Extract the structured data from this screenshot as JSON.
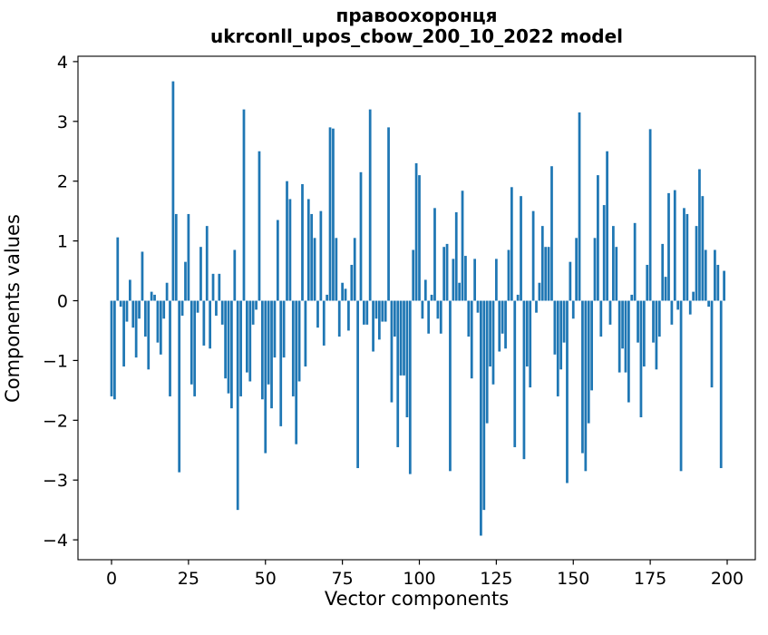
{
  "figure": {
    "title_line1": "правоохоронця",
    "title_line2": "ukrconll_upos_cbow_200_10_2022 model",
    "xlabel": "Vector components",
    "ylabel": "Components values"
  },
  "chart_data": {
    "type": "bar",
    "title": "правоохоронця",
    "subtitle": "ukrconll_upos_cbow_200_10_2022 model",
    "xlabel": "Vector components",
    "ylabel": "Components values",
    "bar_color": "#1f77b4",
    "axis_color": "#000000",
    "background_color": "#ffffff",
    "grid": false,
    "legend": false,
    "x_ticks": [
      0,
      25,
      50,
      75,
      100,
      125,
      150,
      175,
      200
    ],
    "y_ticks_labels": [
      "4",
      "3",
      "2",
      "1",
      "0",
      "−1",
      "−2",
      "−3",
      "−4"
    ],
    "y_ticks": [
      4,
      3,
      2,
      1,
      0,
      -1,
      -2,
      -3,
      -4
    ],
    "xlim": [
      -10.9,
      209.1
    ],
    "ylim": [
      -4.33,
      4.09
    ],
    "x_index_range": [
      0,
      199
    ],
    "values": [
      -1.6,
      -1.65,
      1.06,
      -0.1,
      -1.1,
      -0.35,
      0.35,
      -0.45,
      -0.95,
      -0.3,
      0.82,
      -0.6,
      -1.15,
      0.15,
      0.1,
      -0.7,
      -0.9,
      -0.3,
      0.3,
      -1.6,
      3.67,
      1.45,
      -2.87,
      -0.25,
      0.65,
      1.45,
      -1.4,
      -1.6,
      -0.2,
      0.9,
      -0.75,
      1.25,
      -0.8,
      0.45,
      -0.25,
      0.45,
      -0.4,
      -1.3,
      -1.55,
      -1.8,
      0.85,
      -3.5,
      -1.6,
      3.2,
      -1.2,
      -1.35,
      -0.4,
      -0.15,
      2.5,
      -1.65,
      -2.55,
      -1.4,
      -1.8,
      -0.95,
      1.35,
      -2.1,
      -0.95,
      2.0,
      1.7,
      -1.6,
      -2.4,
      -1.35,
      1.95,
      -1.1,
      1.7,
      1.45,
      1.05,
      -0.45,
      1.5,
      -0.75,
      0.1,
      2.9,
      2.88,
      1.05,
      -0.6,
      0.3,
      0.2,
      -0.5,
      0.6,
      1.05,
      -2.8,
      2.15,
      -0.4,
      -0.4,
      3.2,
      -0.85,
      -0.3,
      -0.65,
      -0.35,
      -0.35,
      2.9,
      -1.7,
      -0.6,
      -2.45,
      -1.25,
      -1.25,
      -1.95,
      -2.9,
      0.85,
      2.3,
      2.1,
      -0.3,
      0.35,
      -0.55,
      0.1,
      1.55,
      -0.3,
      -0.55,
      0.9,
      0.95,
      -2.85,
      0.7,
      1.48,
      0.3,
      1.84,
      0.75,
      -0.6,
      -1.3,
      0.7,
      -0.2,
      -3.93,
      -3.5,
      -2.05,
      -1.1,
      -1.4,
      0.7,
      -0.85,
      -0.55,
      -0.8,
      0.85,
      1.9,
      -2.45,
      0.1,
      1.75,
      -2.65,
      -1.1,
      -1.45,
      1.5,
      -0.2,
      0.3,
      1.25,
      0.9,
      0.9,
      2.25,
      -0.9,
      -1.6,
      -1.15,
      -0.7,
      -3.05,
      0.65,
      -0.3,
      1.05,
      3.15,
      -2.55,
      -2.85,
      -2.05,
      -1.5,
      1.05,
      2.1,
      -0.6,
      1.6,
      2.5,
      -0.4,
      1.25,
      0.9,
      -1.2,
      -0.8,
      -1.2,
      -1.7,
      0.1,
      1.3,
      -0.7,
      -1.95,
      -1.1,
      0.6,
      2.87,
      -0.7,
      -1.15,
      -0.6,
      0.95,
      0.4,
      1.8,
      -0.4,
      1.85,
      -0.15,
      -2.85,
      1.55,
      1.45,
      -0.23,
      0.15,
      1.25,
      2.2,
      1.75,
      0.85,
      -0.1,
      -1.45,
      0.85,
      0.6,
      -2.8,
      0.5
    ]
  }
}
